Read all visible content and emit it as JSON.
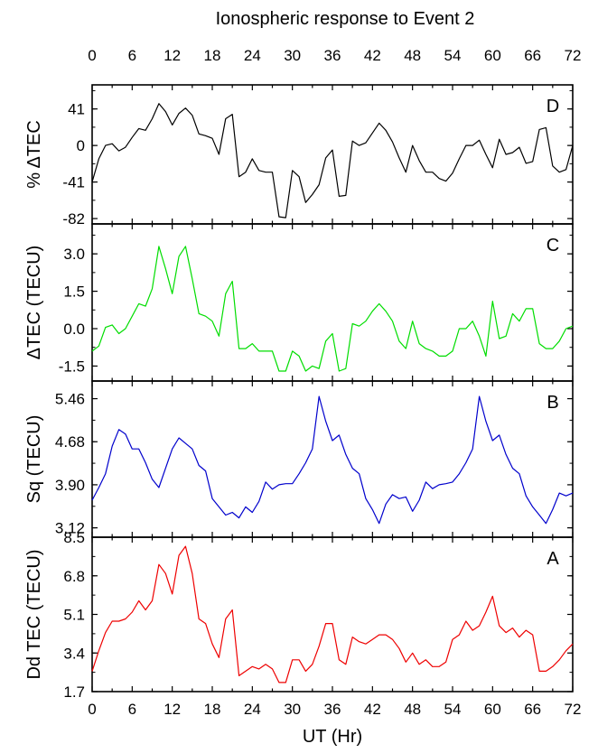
{
  "chart_data": {
    "type": "line",
    "title": "Ionospheric response to Event 2",
    "xlabel": "UT (Hr)",
    "x_ticks": [
      0,
      6,
      12,
      18,
      24,
      30,
      36,
      42,
      48,
      54,
      60,
      66,
      72
    ],
    "x_ticks_top": [
      0,
      6,
      12,
      18,
      24,
      30,
      36,
      42,
      48,
      54,
      60,
      66,
      72
    ],
    "xlim": [
      0,
      72
    ],
    "x": [
      0,
      1,
      2,
      3,
      4,
      5,
      6,
      7,
      8,
      9,
      10,
      11,
      12,
      13,
      14,
      15,
      16,
      17,
      18,
      19,
      20,
      21,
      22,
      23,
      24,
      25,
      26,
      27,
      28,
      29,
      30,
      31,
      32,
      33,
      34,
      35,
      36,
      37,
      38,
      39,
      40,
      41,
      42,
      43,
      44,
      45,
      46,
      47,
      48,
      49,
      50,
      51,
      52,
      53,
      54,
      55,
      56,
      57,
      58,
      59,
      60,
      61,
      62,
      63,
      64,
      65,
      66,
      67,
      68,
      69,
      70,
      71,
      72
    ],
    "panels": [
      {
        "letter": "D",
        "ylabel": "% ΔTEC",
        "color": "#000000",
        "ylim": [
          -88,
          68
        ],
        "y_ticks": [
          "41",
          "0",
          "-41",
          "-82"
        ],
        "y_tick_values": [
          41,
          0,
          -41,
          -82
        ],
        "values": [
          -41,
          -15,
          0,
          2,
          -6,
          -2,
          9,
          19,
          17,
          30,
          47,
          38,
          23,
          36,
          42,
          34,
          13,
          11,
          8,
          -10,
          30,
          35,
          -35,
          -30,
          -15,
          -28,
          -30,
          -30,
          -80,
          -81,
          -28,
          -35,
          -64,
          -55,
          -44,
          -14,
          -5,
          -57,
          -56,
          5,
          0,
          3,
          14,
          25,
          17,
          4,
          -14,
          -30,
          0,
          -17,
          -30,
          -30,
          -37,
          -40,
          -31,
          -15,
          0,
          0,
          6,
          -10,
          -25,
          7,
          -10,
          -8,
          -2,
          -20,
          -18,
          18,
          20,
          -23,
          -30,
          -27,
          0
        ]
      },
      {
        "letter": "C",
        "ylabel": "ΔTEC (TECU)",
        "color": "#00dd00",
        "ylim": [
          -2.1,
          4.2
        ],
        "y_ticks": [
          "3.0",
          "1.5",
          "0.0",
          "-1.5"
        ],
        "y_tick_values": [
          3.0,
          1.5,
          0.0,
          -1.5
        ],
        "values": [
          -0.9,
          -0.7,
          0.05,
          0.15,
          -0.2,
          0.0,
          0.5,
          1.0,
          0.9,
          1.6,
          3.3,
          2.4,
          1.4,
          2.9,
          3.3,
          2.0,
          0.6,
          0.5,
          0.3,
          -0.3,
          1.4,
          1.9,
          -0.8,
          -0.8,
          -0.6,
          -0.9,
          -0.9,
          -0.9,
          -1.7,
          -1.7,
          -0.9,
          -1.1,
          -1.7,
          -1.5,
          -1.6,
          -0.5,
          -0.2,
          -1.7,
          -1.6,
          0.2,
          0.1,
          0.3,
          0.7,
          1.0,
          0.7,
          0.3,
          -0.5,
          -0.8,
          0.3,
          -0.6,
          -0.8,
          -0.9,
          -1.1,
          -1.1,
          -0.9,
          0.0,
          0.0,
          0.3,
          -0.3,
          -1.1,
          1.1,
          -0.4,
          -0.3,
          0.6,
          0.3,
          0.8,
          0.8,
          -0.6,
          -0.8,
          -0.8,
          -0.5,
          0.0,
          0.1
        ]
      },
      {
        "letter": "B",
        "ylabel": "Sq (TECU)",
        "color": "#0000cc",
        "ylim": [
          2.95,
          5.78
        ],
        "y_ticks": [
          "5.46",
          "4.68",
          "3.90",
          "3.12"
        ],
        "y_tick_values": [
          5.46,
          4.68,
          3.9,
          3.12
        ],
        "values": [
          3.62,
          3.85,
          4.1,
          4.6,
          4.9,
          4.82,
          4.55,
          4.55,
          4.3,
          4.0,
          3.85,
          4.2,
          4.55,
          4.75,
          4.65,
          4.55,
          4.25,
          4.15,
          3.65,
          3.5,
          3.35,
          3.4,
          3.3,
          3.5,
          3.4,
          3.6,
          3.95,
          3.82,
          3.9,
          3.92,
          3.92,
          4.1,
          4.3,
          4.55,
          5.5,
          5.05,
          4.7,
          4.8,
          4.45,
          4.2,
          4.1,
          3.65,
          3.45,
          3.2,
          3.55,
          3.72,
          3.65,
          3.68,
          3.42,
          3.62,
          3.95,
          3.83,
          3.9,
          3.92,
          3.95,
          4.1,
          4.3,
          4.55,
          5.5,
          5.05,
          4.7,
          4.8,
          4.45,
          4.2,
          4.1,
          3.7,
          3.5,
          3.35,
          3.2,
          3.45,
          3.75,
          3.7,
          3.75
        ]
      },
      {
        "letter": "A",
        "ylabel": "Dd TEC (TECU)",
        "color": "#ee0000",
        "ylim": [
          1.7,
          8.5
        ],
        "y_ticks": [
          "8.5",
          "6.8",
          "5.1",
          "3.4",
          "1.7"
        ],
        "y_tick_values": [
          8.5,
          6.8,
          5.1,
          3.4,
          1.7
        ],
        "values": [
          2.6,
          3.5,
          4.3,
          4.8,
          4.8,
          4.9,
          5.2,
          5.7,
          5.3,
          5.7,
          7.3,
          6.9,
          6.0,
          7.7,
          8.1,
          6.9,
          4.9,
          4.7,
          3.8,
          3.2,
          4.9,
          5.3,
          2.4,
          2.6,
          2.8,
          2.7,
          2.9,
          2.7,
          2.1,
          2.1,
          3.1,
          3.1,
          2.6,
          2.9,
          3.7,
          4.7,
          4.7,
          3.1,
          2.9,
          4.1,
          3.9,
          3.8,
          4.0,
          4.2,
          4.2,
          4.0,
          3.6,
          3.0,
          3.4,
          2.9,
          3.1,
          2.8,
          2.8,
          3.0,
          4.0,
          4.2,
          4.8,
          4.4,
          4.6,
          5.2,
          5.9,
          4.6,
          4.3,
          4.5,
          4.1,
          4.4,
          4.2,
          2.6,
          2.6,
          2.8,
          3.1,
          3.5,
          3.8
        ]
      }
    ],
    "grid": false,
    "legend": "none"
  }
}
